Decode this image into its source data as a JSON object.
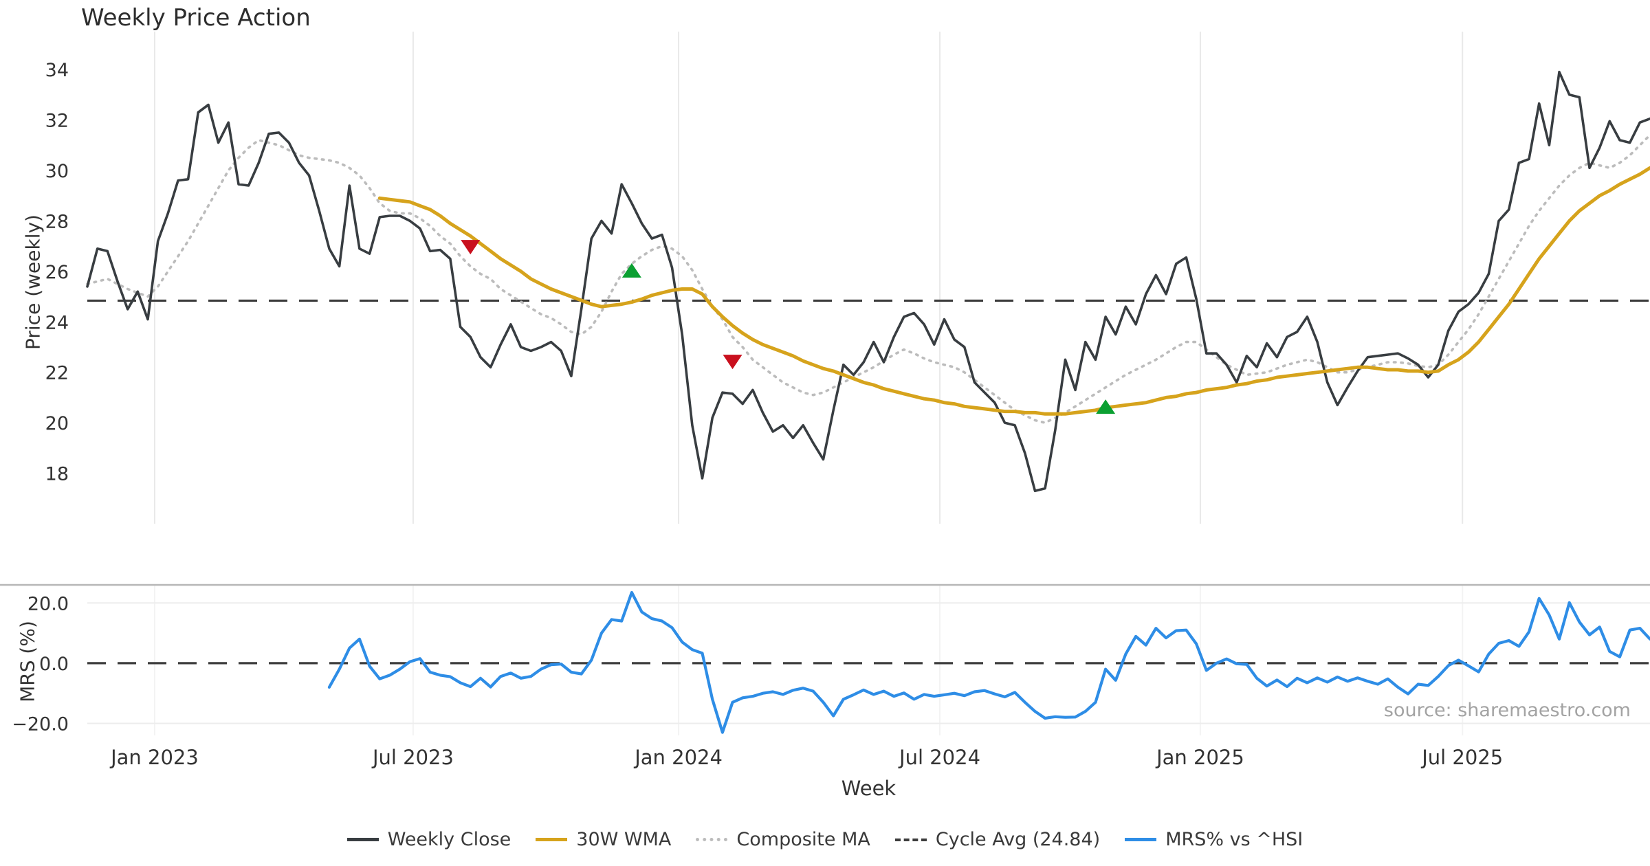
{
  "title": "Weekly Price Action",
  "source_note": "source: sharemaestro.com",
  "colors": {
    "close": "#383d41",
    "wma": "#d6a31c",
    "composite": "#bcbcbc",
    "cycle_dash": "#3c3c3c",
    "mrs": "#2e8de6",
    "buy_marker": "#0ba032",
    "sell_marker": "#c9101e",
    "grid_vertical": "#e9e9e9",
    "grid_horizontal": "#ededed",
    "panel_spine": "#b7b7b7",
    "tick_text": "#333333"
  },
  "legend": [
    {
      "label": "Weekly Close",
      "swatch": "solid-dark"
    },
    {
      "label": "30W WMA",
      "swatch": "solid-gold"
    },
    {
      "label": "Composite MA",
      "swatch": "dotted"
    },
    {
      "label": "Cycle Avg (24.84)",
      "swatch": "dashed"
    },
    {
      "label": "MRS% vs ^HSI",
      "swatch": "solid-blue"
    }
  ],
  "x_axis": {
    "label": "Week",
    "total_weeks": 155,
    "ticks": [
      {
        "label": "Jan 2023",
        "week": 6.68
      },
      {
        "label": "Jul 2023",
        "week": 32.32
      },
      {
        "label": "Jan 2024",
        "week": 58.65
      },
      {
        "label": "Jul 2024",
        "week": 84.56
      },
      {
        "label": "Jan 2025",
        "week": 110.4
      },
      {
        "label": "Jul 2025",
        "week": 136.4
      }
    ]
  },
  "chart_data": [
    {
      "type": "line",
      "panel": "price",
      "ylabel": "Price (weekly)",
      "ylim": [
        16.0,
        35.5
      ],
      "yticks": [
        18,
        20,
        22,
        24,
        26,
        28,
        30,
        32,
        34
      ],
      "cycle_avg": 24.84,
      "series": [
        {
          "name": "Weekly Close",
          "style": "solid",
          "color_key": "close",
          "width": 3.6,
          "start_week": 0,
          "values": [
            25.4,
            26.9,
            26.8,
            25.6,
            24.5,
            25.2,
            24.1,
            27.2,
            28.3,
            29.6,
            29.65,
            32.3,
            32.6,
            31.1,
            31.9,
            29.45,
            29.4,
            30.3,
            31.45,
            31.5,
            31.1,
            30.3,
            29.8,
            28.4,
            26.9,
            26.2,
            29.4,
            26.9,
            26.7,
            28.15,
            28.2,
            28.2,
            28.0,
            27.7,
            26.8,
            26.85,
            26.5,
            23.8,
            23.4,
            22.6,
            22.2,
            23.1,
            23.9,
            23.0,
            22.85,
            23.0,
            23.2,
            22.85,
            21.85,
            24.5,
            27.3,
            28.0,
            27.5,
            29.45,
            28.7,
            27.9,
            27.3,
            27.45,
            26.15,
            23.5,
            19.9,
            17.8,
            20.2,
            21.2,
            21.15,
            20.75,
            21.3,
            20.4,
            19.65,
            19.9,
            19.4,
            19.9,
            19.2,
            18.55,
            20.5,
            22.3,
            21.9,
            22.4,
            23.2,
            22.4,
            23.4,
            24.2,
            24.35,
            23.9,
            23.1,
            24.1,
            23.3,
            23.0,
            21.6,
            21.2,
            20.8,
            20.0,
            19.9,
            18.8,
            17.3,
            17.4,
            19.7,
            22.5,
            21.3,
            23.2,
            22.5,
            24.2,
            23.5,
            24.6,
            23.9,
            25.1,
            25.85,
            25.1,
            26.3,
            26.55,
            24.9,
            22.75,
            22.75,
            22.3,
            21.6,
            22.65,
            22.2,
            23.15,
            22.6,
            23.4,
            23.6,
            24.2,
            23.2,
            21.6,
            20.7,
            21.4,
            22.05,
            22.6,
            22.65,
            22.7,
            22.75,
            22.55,
            22.3,
            21.8,
            22.3,
            23.65,
            24.4,
            24.7,
            25.15,
            25.9,
            28.0,
            28.45,
            30.3,
            30.45,
            32.65,
            31.0,
            33.9,
            33.0,
            32.9,
            30.1,
            30.9,
            31.95,
            31.2,
            31.1,
            31.9,
            32.05
          ]
        },
        {
          "name": "30W WMA",
          "style": "solid",
          "color_key": "wma",
          "width": 5,
          "start_week": 29,
          "values": [
            28.9,
            28.85,
            28.8,
            28.75,
            28.6,
            28.45,
            28.2,
            27.9,
            27.65,
            27.4,
            27.1,
            26.8,
            26.5,
            26.25,
            26.0,
            25.7,
            25.5,
            25.3,
            25.15,
            25.0,
            24.85,
            24.7,
            24.6,
            24.65,
            24.7,
            24.78,
            24.9,
            25.05,
            25.15,
            25.25,
            25.3,
            25.3,
            25.1,
            24.6,
            24.2,
            23.85,
            23.55,
            23.3,
            23.1,
            22.95,
            22.8,
            22.65,
            22.45,
            22.3,
            22.15,
            22.05,
            21.9,
            21.75,
            21.6,
            21.5,
            21.35,
            21.25,
            21.15,
            21.05,
            20.95,
            20.9,
            20.8,
            20.75,
            20.65,
            20.6,
            20.55,
            20.5,
            20.45,
            20.45,
            20.4,
            20.4,
            20.35,
            20.35,
            20.35,
            20.4,
            20.45,
            20.5,
            20.6,
            20.65,
            20.7,
            20.75,
            20.8,
            20.9,
            21.0,
            21.05,
            21.15,
            21.2,
            21.3,
            21.35,
            21.4,
            21.5,
            21.55,
            21.65,
            21.7,
            21.8,
            21.85,
            21.9,
            21.95,
            22.0,
            22.05,
            22.1,
            22.15,
            22.2,
            22.2,
            22.15,
            22.1,
            22.1,
            22.05,
            22.05,
            22.0,
            22.05,
            22.3,
            22.5,
            22.8,
            23.2,
            23.7,
            24.2,
            24.7,
            25.3,
            25.9,
            26.5,
            27.0,
            27.5,
            28.0,
            28.4,
            28.7,
            29.0,
            29.2,
            29.45,
            29.65,
            29.85,
            30.1
          ]
        },
        {
          "name": "Composite MA",
          "style": "dotted",
          "color_key": "composite",
          "width": 3.6,
          "start_week": 0,
          "values": [
            25.5,
            25.6,
            25.7,
            25.5,
            25.3,
            25.15,
            25.0,
            25.4,
            26.0,
            26.6,
            27.2,
            27.9,
            28.6,
            29.3,
            30.0,
            30.5,
            30.9,
            31.2,
            31.1,
            31.0,
            30.8,
            30.6,
            30.5,
            30.45,
            30.4,
            30.3,
            30.1,
            29.8,
            29.3,
            28.7,
            28.4,
            28.3,
            28.3,
            28.1,
            27.8,
            27.4,
            27.1,
            26.6,
            26.2,
            25.9,
            25.7,
            25.3,
            25.05,
            24.8,
            24.55,
            24.3,
            24.15,
            23.9,
            23.6,
            23.5,
            23.8,
            24.4,
            25.2,
            25.9,
            26.3,
            26.6,
            26.85,
            27.0,
            26.9,
            26.6,
            26.05,
            25.3,
            24.6,
            24.1,
            23.4,
            23.0,
            22.5,
            22.2,
            21.9,
            21.6,
            21.4,
            21.2,
            21.1,
            21.2,
            21.4,
            21.6,
            21.8,
            22.0,
            22.2,
            22.45,
            22.7,
            22.9,
            22.75,
            22.55,
            22.4,
            22.3,
            22.2,
            22.0,
            21.7,
            21.4,
            21.1,
            20.8,
            20.5,
            20.3,
            20.1,
            20.0,
            20.2,
            20.4,
            20.65,
            20.9,
            21.15,
            21.4,
            21.65,
            21.9,
            22.1,
            22.3,
            22.5,
            22.75,
            23.0,
            23.2,
            23.2,
            22.9,
            22.6,
            22.3,
            22.1,
            21.9,
            21.95,
            22.0,
            22.15,
            22.3,
            22.4,
            22.5,
            22.4,
            22.2,
            22.0,
            22.0,
            22.1,
            22.2,
            22.3,
            22.4,
            22.4,
            22.35,
            22.25,
            22.2,
            22.3,
            22.7,
            23.2,
            23.7,
            24.3,
            25.0,
            25.7,
            26.4,
            27.1,
            27.8,
            28.4,
            28.9,
            29.4,
            29.8,
            30.1,
            30.3,
            30.2,
            30.1,
            30.3,
            30.6,
            31.0,
            31.4
          ]
        }
      ],
      "markers": [
        {
          "type": "sell",
          "week": 38,
          "price": 27.0
        },
        {
          "type": "buy",
          "week": 54,
          "price": 26.0
        },
        {
          "type": "sell",
          "week": 64,
          "price": 22.45
        },
        {
          "type": "buy",
          "week": 101,
          "price": 20.6
        }
      ]
    },
    {
      "type": "line",
      "panel": "mrs",
      "ylabel": "MRS (%)",
      "ylim": [
        -24.0,
        26.0
      ],
      "yticks": [
        -20.0,
        0.0,
        20.0
      ],
      "zero_line": 0.0,
      "series": [
        {
          "name": "MRS% vs ^HSI",
          "style": "solid",
          "color_key": "mrs",
          "width": 4.2,
          "start_week": 24,
          "values": [
            -8,
            -2,
            5,
            8,
            -1,
            -5.2,
            -4,
            -2,
            0.5,
            1.5,
            -3,
            -4,
            -4.5,
            -6.5,
            -7.8,
            -5,
            -7.9,
            -4.4,
            -3.3,
            -5,
            -4.4,
            -2,
            -0.5,
            -0.3,
            -3,
            -3.6,
            1,
            10,
            14.5,
            14,
            23.5,
            17,
            14.8,
            14,
            11.8,
            7,
            4.5,
            3.3,
            -12,
            -23,
            -13,
            -11.5,
            -11,
            -10,
            -9.5,
            -10.4,
            -9,
            -8.3,
            -9.3,
            -13,
            -17.5,
            -12,
            -10.5,
            -8.9,
            -10.4,
            -9.3,
            -11,
            -9.9,
            -12,
            -10.4,
            -11,
            -10.5,
            -10,
            -10.8,
            -9.5,
            -9.1,
            -10.2,
            -11.2,
            -9.7,
            -13,
            -16,
            -18.3,
            -17.8,
            -18,
            -17.9,
            -16,
            -13,
            -2,
            -5.7,
            3,
            8.9,
            6,
            11.6,
            8.4,
            10.8,
            11,
            6.4,
            -2.4,
            0,
            1.4,
            -0.2,
            -0.4,
            -5,
            -7.6,
            -5.6,
            -7.8,
            -5,
            -6.5,
            -4.9,
            -6.3,
            -4.6,
            -6,
            -4.9,
            -6,
            -7,
            -5.2,
            -8,
            -10.2,
            -7,
            -7.4,
            -4.4,
            -0.8,
            1,
            -0.9,
            -2.9,
            3,
            6.6,
            7.5,
            5.6,
            10.4,
            21.5,
            16,
            8,
            20.1,
            13.7,
            9.4,
            12,
            3.9,
            2.1,
            11,
            11.6,
            8
          ]
        }
      ]
    }
  ]
}
